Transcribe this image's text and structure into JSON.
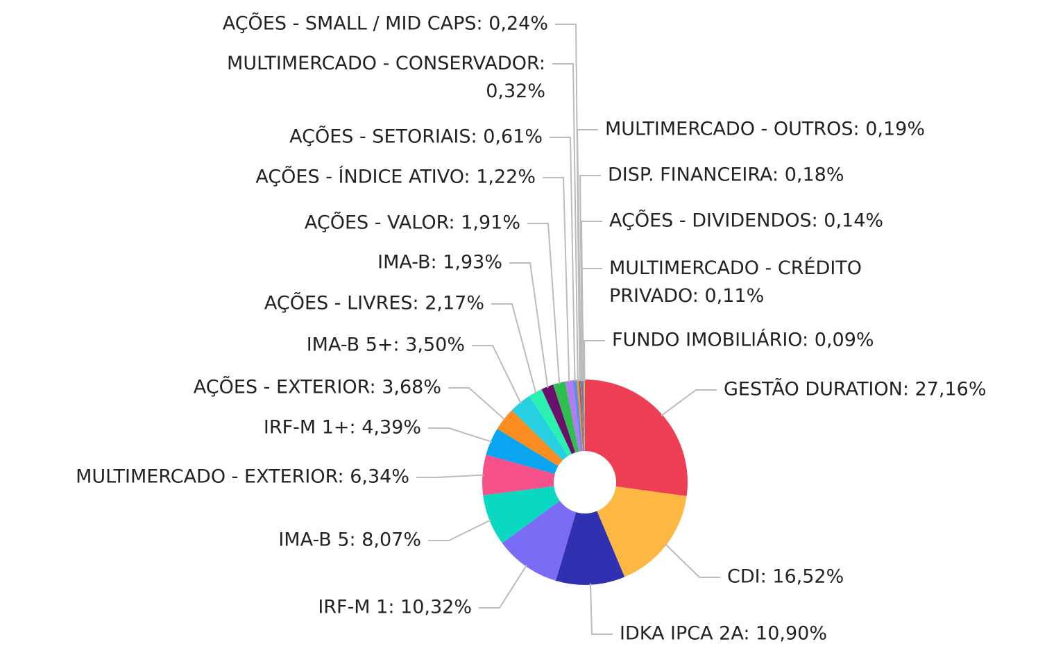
{
  "chart_data": {
    "type": "donut",
    "value_labels": [
      "GESTÃO DURATION: 27,16%",
      "CDI: 16,52%",
      "IDKA IPCA 2A: 10,90%",
      "IRF-M 1: 10,32%",
      "IMA-B 5: 8,07%",
      "MULTIMERCADO - EXTERIOR: 6,34%",
      "IRF-M 1+: 4,39%",
      "AÇÕES - EXTERIOR: 3,68%",
      "IMA-B 5+: 3,50%",
      "AÇÕES - LIVRES: 2,17%",
      "IMA-B: 1,93%",
      "AÇÕES - VALOR: 1,91%",
      "AÇÕES - ÍNDICE ATIVO: 1,22%",
      "AÇÕES - SETORIAIS: 0,61%",
      "MULTIMERCADO - CONSERVADOR: 0,32%",
      "AÇÕES - SMALL / MID CAPS: 0,24%",
      "MULTIMERCADO - OUTROS: 0,19%",
      "DISP. FINANCEIRA: 0,18%",
      "AÇÕES - DIVIDENDOS: 0,14%",
      "MULTIMERCADO - CRÉDITO PRIVADO: 0,11%",
      "FUNDO IMOBILIÁRIO: 0,09%"
    ],
    "values": [
      27.16,
      16.52,
      10.9,
      10.32,
      8.07,
      6.34,
      4.39,
      3.68,
      3.5,
      2.17,
      1.93,
      1.91,
      1.22,
      0.61,
      0.32,
      0.24,
      0.19,
      0.18,
      0.14,
      0.11,
      0.09
    ],
    "colors": [
      "#ee3e54",
      "#fdb843",
      "#3031b0",
      "#7b6cf6",
      "#0ad8c0",
      "#f5508a",
      "#0aa5f0",
      "#fb8c1f",
      "#26d0e0",
      "#2af0b0",
      "#6a0f6a",
      "#2fbf4f",
      "#b07cf0",
      "#5a8cf0",
      "#e0a020",
      "#d04060",
      "#40a0a0",
      "#8060c0",
      "#f07030",
      "#30b0e0",
      "#c0c040"
    ]
  }
}
